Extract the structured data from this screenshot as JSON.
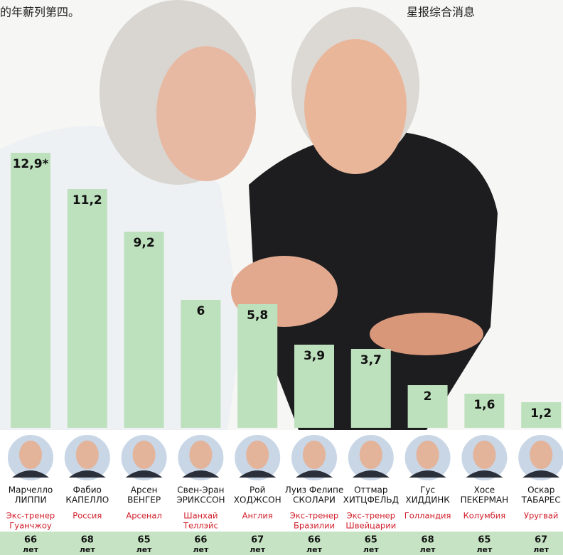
{
  "header": {
    "left": "的年薪列第四。",
    "right": "星报综合消息"
  },
  "chart_data": {
    "type": "bar",
    "color": "#bde0bd",
    "values": [
      12.9,
      11.2,
      9.2,
      6,
      5.8,
      3.9,
      3.7,
      2,
      1.6,
      1.2
    ],
    "value_labels": [
      "12,9*",
      "11,2",
      "9,2",
      "6",
      "5,8",
      "3,9",
      "3,7",
      "2",
      "1,6",
      "1,2"
    ],
    "age_unit": "лет",
    "coaches": [
      {
        "first": "Марчелло",
        "last": "ЛИППИ",
        "team": [
          "Экс-тренер",
          "Гуанчжоу"
        ],
        "age": 66
      },
      {
        "first": "Фабио",
        "last": "КАПЕЛЛО",
        "team": [
          "Россия"
        ],
        "age": 68
      },
      {
        "first": "Арсен",
        "last": "ВЕНГЕР",
        "team": [
          "Арсенал"
        ],
        "age": 65
      },
      {
        "first": "Свен-Эран",
        "last": "ЭРИКССОН",
        "team": [
          "Шанхай",
          "Теллэйс"
        ],
        "age": 66
      },
      {
        "first": "Рой",
        "last": "ХОДЖСОН",
        "team": [
          "Англия"
        ],
        "age": 67
      },
      {
        "first": "Луиз Фелипе",
        "last": "СКОЛАРИ",
        "team": [
          "Экс-тренер",
          "Бразилии"
        ],
        "age": 66
      },
      {
        "first": "Оттмар",
        "last": "ХИТЦФЕЛЬД",
        "team": [
          "Экс-тренер",
          "Швейцарии"
        ],
        "age": 65
      },
      {
        "first": "Гус",
        "last": "ХИДДИНК",
        "team": [
          "Голландия"
        ],
        "age": 68
      },
      {
        "first": "Хосе",
        "last": "ПЕКЕРМАН",
        "team": [
          "Колумбия"
        ],
        "age": 65
      },
      {
        "first": "Оскар",
        "last": "ТАБАРЕС",
        "team": [
          "Уругвай"
        ],
        "age": 67
      }
    ]
  }
}
